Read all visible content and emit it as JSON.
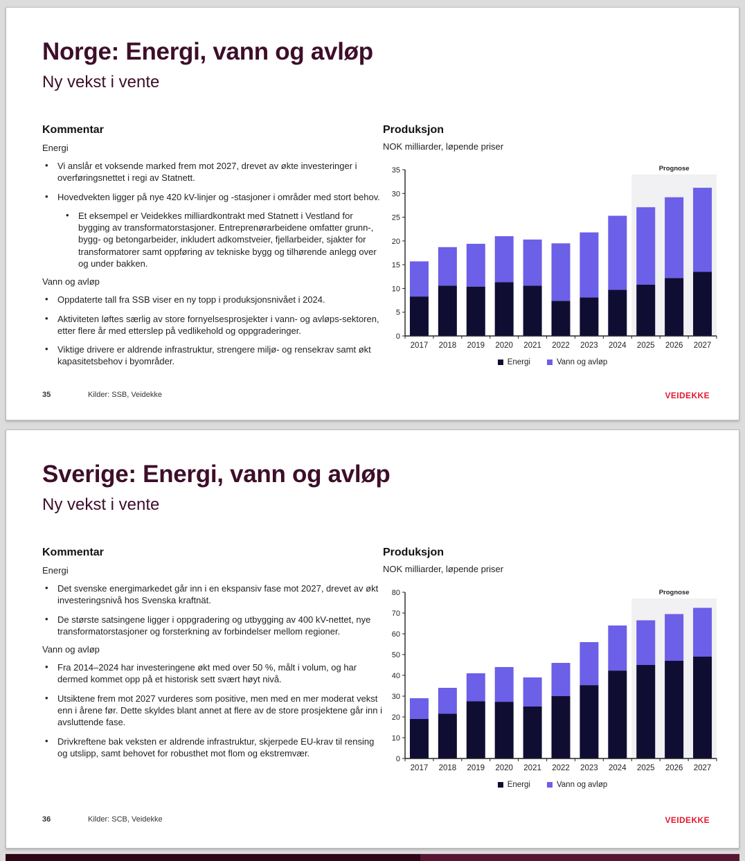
{
  "colors": {
    "energi": "#100d33",
    "vann_og_avlop": "#6c5fe8",
    "title_maroon": "#3d0e2a",
    "logo_red": "#e3172f",
    "forecast_bg": "#f1f0f2"
  },
  "slides": [
    {
      "title": "Norge: Energi, vann og avløp",
      "subtitle": "Ny vekst i vente",
      "comment_heading": "Kommentar",
      "sections": [
        {
          "label": "Energi",
          "bullets": [
            {
              "indent": 0,
              "text": "Vi anslår et voksende marked frem mot 2027, drevet av økte investeringer i overføringsnettet i regi av Statnett."
            },
            {
              "indent": 0,
              "text": "Hovedvekten ligger på nye 420 kV-linjer og -stasjoner i områder med stort behov."
            },
            {
              "indent": 1,
              "text": "Et eksempel er Veidekkes milliardkontrakt med Statnett i Vestland for bygging av transformatorstasjoner. Entreprenørarbeidene omfatter grunn-, bygg- og betongarbeider, inkludert adkomstveier, fjellarbeider, sjakter for transformatorer samt oppføring av tekniske bygg og tilhørende anlegg over og under bakken."
            }
          ]
        },
        {
          "label": "Vann og avløp",
          "bullets": [
            {
              "indent": 0,
              "text": "Oppdaterte tall fra SSB viser en ny topp i produksjonsnivået i 2024."
            },
            {
              "indent": 0,
              "text": "Aktiviteten løftes særlig av store fornyelsesprosjekter i vann- og avløps-sektoren, etter flere år med etterslep på vedlikehold og oppgraderinger."
            },
            {
              "indent": 0,
              "text": "Viktige drivere er aldrende infrastruktur, strengere miljø- og rensekrav samt økt kapasitetsbehov i byområder."
            }
          ]
        }
      ],
      "chart_heading": "Produksjon",
      "chart_subtitle": "NOK milliarder, løpende priser",
      "footer_page": "35",
      "footer_sources": "Kilder: SSB, Veidekke",
      "footer_logo": "VEIDEKKE"
    },
    {
      "title": "Sverige: Energi, vann og avløp",
      "subtitle": "Ny vekst i vente",
      "comment_heading": "Kommentar",
      "sections": [
        {
          "label": "Energi",
          "bullets": [
            {
              "indent": 0,
              "text": "Det svenske energimarkedet går inn i en ekspansiv fase mot 2027, drevet av økt investeringsnivå hos Svenska kraftnät."
            },
            {
              "indent": 0,
              "text": "De største satsingene ligger i oppgradering og utbygging av 400 kV-nettet, nye transformatorstasjoner og forsterkning av forbindelser mellom regioner."
            }
          ]
        },
        {
          "label": "Vann og avløp",
          "bullets": [
            {
              "indent": 0,
              "text": "Fra 2014–2024 har investeringene økt med over 50 %, målt i volum, og har dermed kommet opp på et historisk sett svært høyt nivå."
            },
            {
              "indent": 0,
              "text": "Utsiktene frem mot 2027 vurderes som positive, men med en mer moderat vekst enn i årene før. Dette skyldes blant annet at flere av de store prosjektene går inn i avsluttende fase."
            },
            {
              "indent": 0,
              "text": "Drivkreftene bak veksten er aldrende infrastruktur, skjerpede EU-krav til rensing og utslipp, samt behovet for robusthet mot flom og ekstremvær."
            }
          ]
        }
      ],
      "chart_heading": "Produksjon",
      "chart_subtitle": "NOK milliarder, løpende priser",
      "footer_page": "36",
      "footer_sources": "Kilder: SCB, Veidekke",
      "footer_logo": "VEIDEKKE"
    }
  ],
  "chart_data": [
    {
      "type": "bar",
      "stacked": true,
      "title": "Produksjon",
      "subtitle": "NOK milliarder, løpende priser",
      "categories": [
        "2017",
        "2018",
        "2019",
        "2020",
        "2021",
        "2022",
        "2023",
        "2024",
        "2025",
        "2026",
        "2027"
      ],
      "series": [
        {
          "name": "Energi",
          "color": "#100d33",
          "values": [
            8.3,
            10.6,
            10.4,
            11.3,
            10.6,
            7.4,
            8.1,
            9.7,
            10.8,
            12.2,
            13.5
          ]
        },
        {
          "name": "Vann og avløp",
          "color": "#6c5fe8",
          "values": [
            7.4,
            8.1,
            9.0,
            9.7,
            9.7,
            12.1,
            13.7,
            15.6,
            16.3,
            17.0,
            17.7
          ]
        }
      ],
      "totals": [
        15.7,
        18.7,
        19.4,
        21.0,
        20.3,
        19.5,
        21.8,
        25.3,
        27.1,
        29.2,
        31.2
      ],
      "ylim": [
        0,
        35
      ],
      "ytick_step": 5,
      "grid": false,
      "legend_position": "bottom",
      "forecast": {
        "label": "Prognose",
        "start_index": 8,
        "top": 34
      }
    },
    {
      "type": "bar",
      "stacked": true,
      "title": "Produksjon",
      "subtitle": "NOK milliarder, løpende priser",
      "categories": [
        "2017",
        "2018",
        "2019",
        "2020",
        "2021",
        "2022",
        "2023",
        "2024",
        "2025",
        "2026",
        "2027"
      ],
      "series": [
        {
          "name": "Energi",
          "color": "#100d33",
          "values": [
            19.0,
            21.5,
            27.5,
            27.3,
            25.0,
            30.0,
            35.3,
            42.3,
            45.0,
            47.0,
            49.0
          ]
        },
        {
          "name": "Vann og avløp",
          "color": "#6c5fe8",
          "values": [
            10.0,
            12.5,
            13.5,
            16.7,
            14.0,
            16.0,
            20.7,
            21.7,
            21.5,
            22.5,
            23.5
          ]
        }
      ],
      "totals": [
        29.0,
        34.0,
        41.0,
        44.0,
        39.0,
        46.0,
        56.0,
        64.0,
        66.5,
        69.5,
        72.5
      ],
      "ylim": [
        0,
        80
      ],
      "ytick_step": 10,
      "grid": false,
      "legend_position": "bottom",
      "forecast": {
        "label": "Prognose",
        "start_index": 8,
        "top": 77
      }
    }
  ],
  "bottom_strip": {
    "description": "top edge of next slide"
  }
}
